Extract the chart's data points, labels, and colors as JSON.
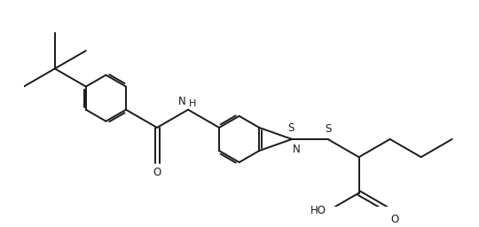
{
  "bg_color": "#ffffff",
  "line_color": "#1a1a1a",
  "line_width": 1.4,
  "font_size": 8.5,
  "figsize": [
    5.4,
    2.56
  ],
  "dpi": 100,
  "xlim": [
    0,
    10.8
  ],
  "ylim": [
    0,
    5.12
  ]
}
